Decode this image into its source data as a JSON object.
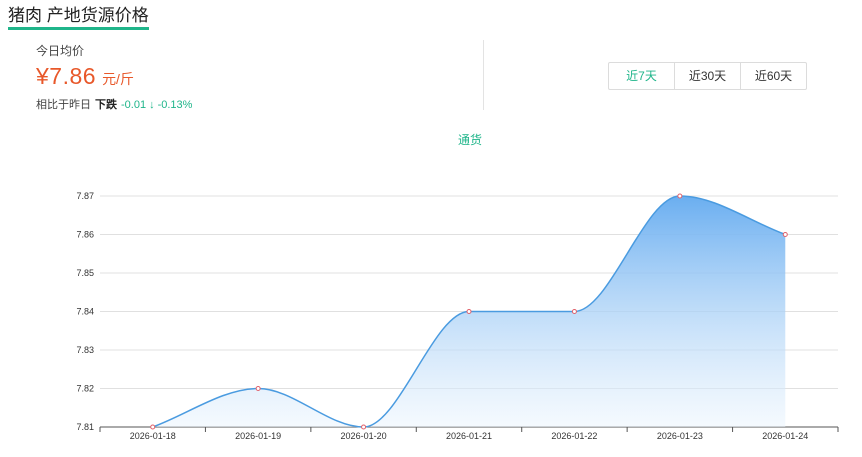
{
  "header": {
    "title": "猪肉 产地货源价格"
  },
  "summary": {
    "today_label": "今日均价",
    "price": "¥7.86",
    "unit": "元/斤",
    "compare_label": "相比于昨日",
    "direction": "下跌",
    "change": "-0.01",
    "change_arrow": "↓",
    "change_pct": "-0.13%"
  },
  "range_buttons": [
    {
      "label": "近7天",
      "active": true
    },
    {
      "label": "近30天",
      "active": false
    },
    {
      "label": "近60天",
      "active": false
    }
  ],
  "colors": {
    "accent": "#1fb58a",
    "price": "#e8582a",
    "line": "#4a9be0"
  },
  "chart_data": {
    "type": "area",
    "legend": [
      "通货"
    ],
    "x": [
      "2026-01-18",
      "2026-01-19",
      "2026-01-20",
      "2026-01-21",
      "2026-01-22",
      "2026-01-23",
      "2026-01-24"
    ],
    "series": [
      {
        "name": "通货",
        "values": [
          7.81,
          7.82,
          7.81,
          7.84,
          7.84,
          7.87,
          7.86
        ]
      }
    ],
    "y_ticks": [
      "7.81",
      "7.82",
      "7.83",
      "7.84",
      "7.85",
      "7.86",
      "7.87"
    ],
    "ylim": [
      7.81,
      7.87
    ],
    "grid": true,
    "smooth": true
  }
}
